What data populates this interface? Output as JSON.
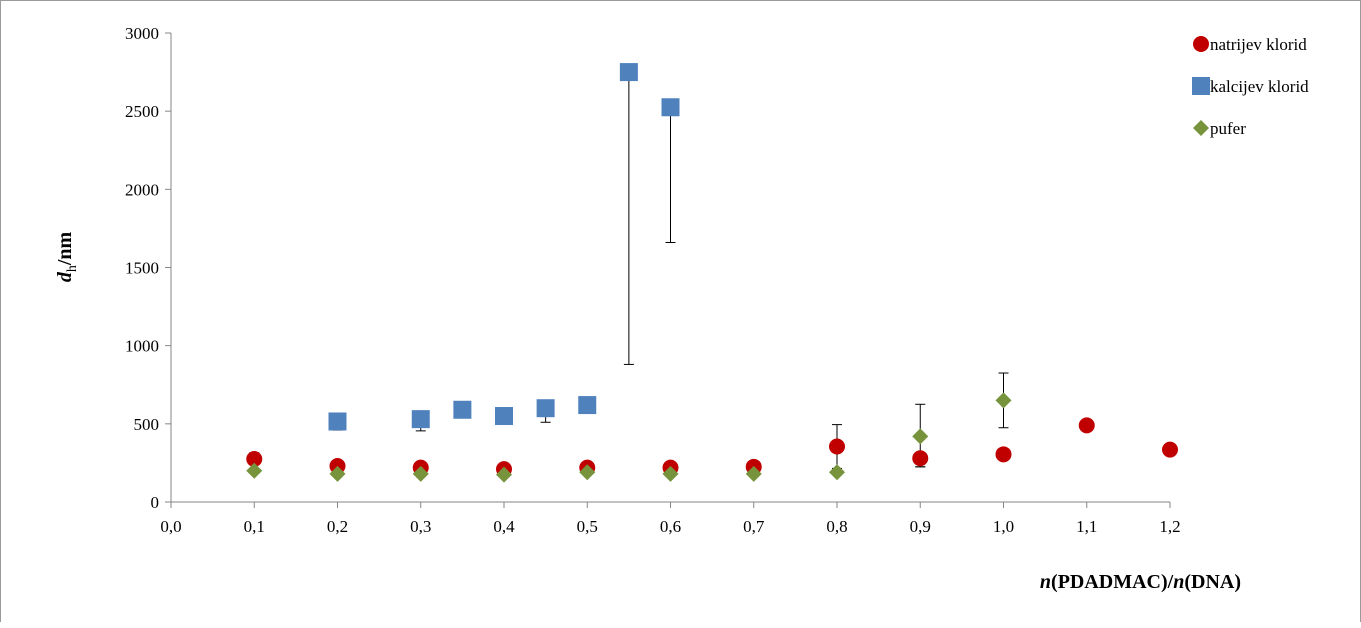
{
  "chart_data": {
    "type": "scatter",
    "title": "",
    "xlabel": {
      "var1": "n",
      "mid1": "(PDADMAC)/",
      "var2": "n",
      "mid2": "(DNA)"
    },
    "ylabel": {
      "var": "d",
      "sub": "h",
      "unit": "/nm"
    },
    "xlim": [
      0,
      1.2
    ],
    "ylim": [
      0,
      3000
    ],
    "x_ticks": [
      "0,0",
      "0,1",
      "0,2",
      "0,3",
      "0,4",
      "0,5",
      "0,6",
      "0,7",
      "0,8",
      "0,9",
      "1,0",
      "1,1",
      "1,2"
    ],
    "y_ticks": [
      "0",
      "500",
      "1000",
      "1500",
      "2000",
      "2500",
      "3000"
    ],
    "legend_position": "top-right",
    "series": [
      {
        "name": "natrijev klorid",
        "color": "#c00000",
        "marker": "circle",
        "points": [
          {
            "x": 0.1,
            "y": 275,
            "err_plus": 40,
            "err_minus": 0
          },
          {
            "x": 0.2,
            "y": 230,
            "err_plus": 0,
            "err_minus": 0
          },
          {
            "x": 0.3,
            "y": 220,
            "err_plus": 0,
            "err_minus": 0
          },
          {
            "x": 0.4,
            "y": 210,
            "err_plus": 0,
            "err_minus": 0
          },
          {
            "x": 0.5,
            "y": 220,
            "err_plus": 0,
            "err_minus": 0
          },
          {
            "x": 0.6,
            "y": 220,
            "err_plus": 0,
            "err_minus": 0
          },
          {
            "x": 0.7,
            "y": 225,
            "err_plus": 0,
            "err_minus": 0
          },
          {
            "x": 0.8,
            "y": 355,
            "err_plus": 140,
            "err_minus": 140
          },
          {
            "x": 0.9,
            "y": 280,
            "err_plus": 0,
            "err_minus": 55
          },
          {
            "x": 1.0,
            "y": 305,
            "err_plus": 0,
            "err_minus": 0
          },
          {
            "x": 1.1,
            "y": 490,
            "err_plus": 0,
            "err_minus": 0
          },
          {
            "x": 1.2,
            "y": 335,
            "err_plus": 30,
            "err_minus": 0
          }
        ]
      },
      {
        "name": "kalcijev klorid",
        "color": "#4f81bd",
        "marker": "square",
        "points": [
          {
            "x": 0.2,
            "y": 515,
            "err_plus": 0,
            "err_minus": 55
          },
          {
            "x": 0.3,
            "y": 530,
            "err_plus": 0,
            "err_minus": 75
          },
          {
            "x": 0.35,
            "y": 590,
            "err_plus": 0,
            "err_minus": 0
          },
          {
            "x": 0.4,
            "y": 550,
            "err_plus": 0,
            "err_minus": 0
          },
          {
            "x": 0.45,
            "y": 600,
            "err_plus": 0,
            "err_minus": 90
          },
          {
            "x": 0.5,
            "y": 620,
            "err_plus": 0,
            "err_minus": 0
          },
          {
            "x": 0.55,
            "y": 2750,
            "err_plus": 0,
            "err_minus": 1870
          },
          {
            "x": 0.6,
            "y": 2525,
            "err_plus": 0,
            "err_minus": 865
          }
        ]
      },
      {
        "name": "pufer",
        "color": "#77933c",
        "marker": "diamond",
        "points": [
          {
            "x": 0.1,
            "y": 200,
            "err_plus": 0,
            "err_minus": 0
          },
          {
            "x": 0.2,
            "y": 180,
            "err_plus": 0,
            "err_minus": 0
          },
          {
            "x": 0.3,
            "y": 180,
            "err_plus": 0,
            "err_minus": 0
          },
          {
            "x": 0.4,
            "y": 175,
            "err_plus": 0,
            "err_minus": 0
          },
          {
            "x": 0.5,
            "y": 190,
            "err_plus": 0,
            "err_minus": 0
          },
          {
            "x": 0.6,
            "y": 180,
            "err_plus": 0,
            "err_minus": 0
          },
          {
            "x": 0.7,
            "y": 180,
            "err_plus": 0,
            "err_minus": 0
          },
          {
            "x": 0.8,
            "y": 190,
            "err_plus": 0,
            "err_minus": 0
          },
          {
            "x": 0.9,
            "y": 420,
            "err_plus": 205,
            "err_minus": 195
          },
          {
            "x": 1.0,
            "y": 650,
            "err_plus": 175,
            "err_minus": 175
          }
        ]
      }
    ]
  }
}
